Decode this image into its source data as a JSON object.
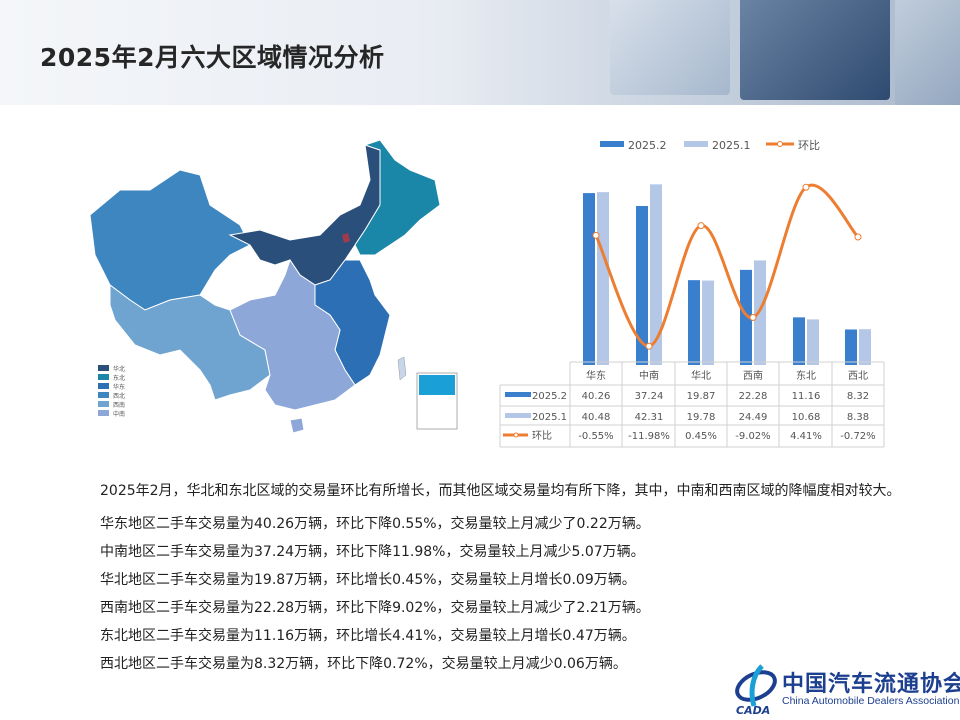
{
  "title": "2025年2月六大区域情况分析",
  "map": {
    "legend": [
      {
        "label": "华北",
        "color": "#2a4f7a"
      },
      {
        "label": "东北",
        "color": "#1a86a8"
      },
      {
        "label": "华东",
        "color": "#2c6fb4"
      },
      {
        "label": "西北",
        "color": "#3d86c0"
      },
      {
        "label": "西南",
        "color": "#6fa4d0"
      },
      {
        "label": "中南",
        "color": "#8da7d8"
      }
    ]
  },
  "chart_data": {
    "type": "bar",
    "categories": [
      "华东",
      "中南",
      "华北",
      "西南",
      "东北",
      "西北"
    ],
    "series": [
      {
        "name": "2025.2",
        "type": "bar",
        "color": "#3a7fce",
        "values": [
          40.26,
          37.24,
          19.87,
          22.28,
          11.16,
          8.32
        ]
      },
      {
        "name": "2025.1",
        "type": "bar",
        "color": "#b4c7e7",
        "values": [
          40.48,
          42.31,
          19.78,
          24.49,
          10.68,
          8.38
        ]
      },
      {
        "name": "环比",
        "type": "line",
        "axis": "secondary",
        "color": "#ed7d31",
        "values": [
          -0.55,
          -11.98,
          0.45,
          -9.02,
          4.41,
          -0.72
        ],
        "labels": [
          "-0.55%",
          "-11.98%",
          "0.45%",
          "-9.02%",
          "4.41%",
          "-0.72%"
        ]
      }
    ],
    "table": true,
    "legend_position": "top",
    "grid": false
  },
  "paragraphs": [
    "2025年2月，华北和东北区域的交易量环比有所增长，而其他区域交易量均有所下降，其中，中南和西南区域的降幅度相对较大。",
    "华东地区二手车交易量为40.26万辆，环比下降0.55%，交易量较上月减少了0.22万辆。",
    "中南地区二手车交易量为37.24万辆，环比下降11.98%，交易量较上月减少5.07万辆。",
    "华北地区二手车交易量为19.87万辆，环比增长0.45%，交易量较上月增长0.09万辆。",
    "西南地区二手车交易量为22.28万辆，环比下降9.02%，交易量较上月减少了2.21万辆。",
    "东北地区二手车交易量为11.16万辆，环比增长4.41%，交易量较上月增长0.47万辆。",
    "西北地区二手车交易量为8.32万辆，环比下降0.72%，交易量较上月减少0.06万辆。"
  ],
  "logo": {
    "cn": "中国汽车流通协会",
    "en": "China Automobile Dealers Association",
    "mark": "CADA"
  }
}
